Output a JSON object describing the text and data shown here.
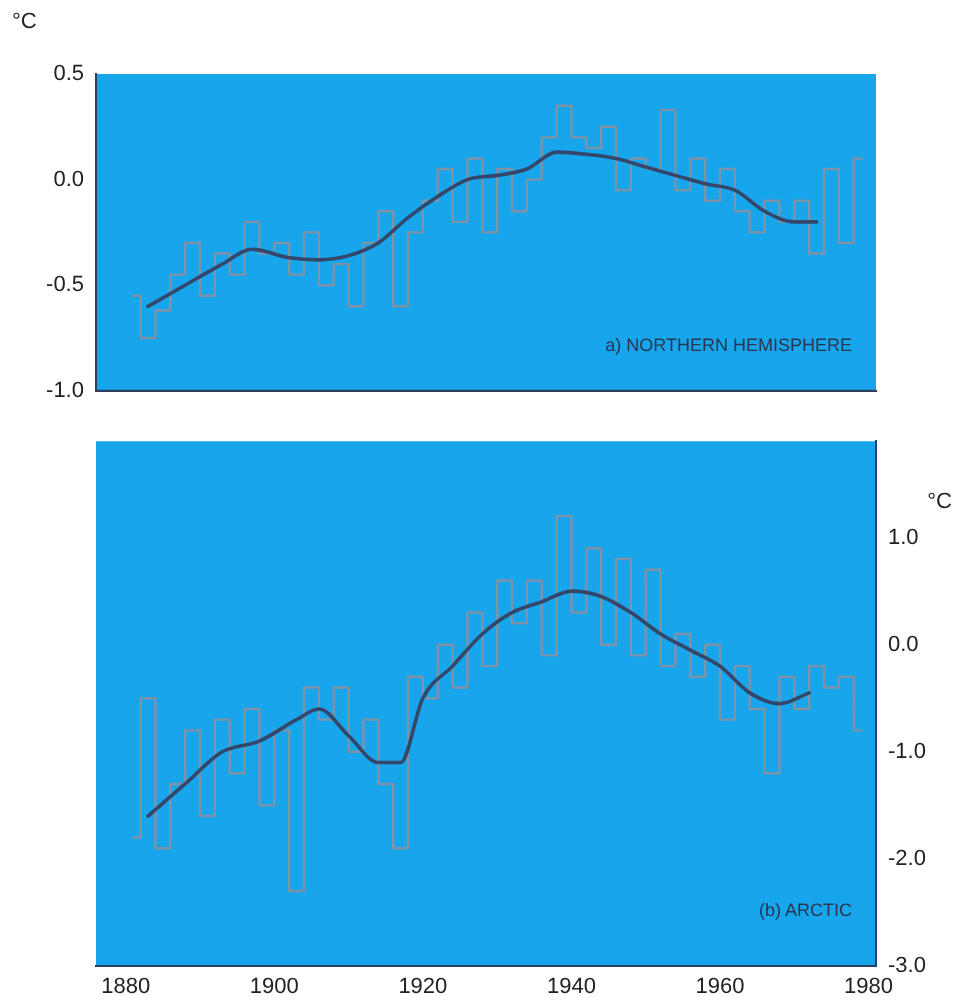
{
  "chart_data": [
    {
      "type": "step",
      "ylabel": "°C",
      "annotations": [
        "a) NORTHERN HEMISPHERE"
      ],
      "xlim": [
        1876,
        1981
      ],
      "xticks": [
        1880,
        1900,
        1920,
        1940,
        1960,
        1980
      ],
      "ylim": [
        -1.0,
        0.5
      ],
      "yticks": [
        {
          "value": -1.0,
          "label": "-1.0"
        },
        {
          "value": -0.5,
          "label": "-0.5"
        },
        {
          "value": 0.0,
          "label": "0.0"
        },
        {
          "value": 0.5,
          "label": "0.5"
        }
      ],
      "tick_labels": "y",
      "legend": false,
      "series": [
        {
          "type": "step",
          "color": "#7f93a8",
          "x": [
            1881,
            1883,
            1885,
            1887,
            1889,
            1891,
            1893,
            1895,
            1897,
            1899,
            1901,
            1903,
            1905,
            1907,
            1909,
            1911,
            1913,
            1915,
            1917,
            1919,
            1921,
            1923,
            1925,
            1927,
            1929,
            1931,
            1933,
            1935,
            1937,
            1939,
            1941,
            1943,
            1945,
            1947,
            1949,
            1951,
            1953,
            1955,
            1957,
            1959,
            1961,
            1963,
            1965,
            1967,
            1969,
            1971,
            1973,
            1975,
            1977,
            1979
          ],
          "values": [
            -0.55,
            -0.75,
            -0.62,
            -0.45,
            -0.3,
            -0.55,
            -0.35,
            -0.45,
            -0.2,
            -0.35,
            -0.3,
            -0.45,
            -0.25,
            -0.5,
            -0.4,
            -0.6,
            -0.3,
            -0.15,
            -0.6,
            -0.25,
            -0.1,
            0.05,
            -0.2,
            0.1,
            -0.25,
            0.05,
            -0.15,
            0.0,
            0.2,
            0.35,
            0.2,
            0.15,
            0.25,
            -0.05,
            0.1,
            0.05,
            0.33,
            -0.05,
            0.1,
            -0.1,
            0.05,
            -0.15,
            -0.25,
            -0.1,
            -0.2,
            -0.1,
            -0.35,
            0.05,
            -0.3,
            0.1
          ]
        },
        {
          "type": "line",
          "color": "#34466a",
          "x": [
            1883,
            1888,
            1893,
            1897,
            1902,
            1906,
            1910,
            1914,
            1918,
            1922,
            1926,
            1930,
            1934,
            1938,
            1942,
            1946,
            1950,
            1954,
            1958,
            1962,
            1966,
            1970,
            1973
          ],
          "values": [
            -0.6,
            -0.5,
            -0.4,
            -0.33,
            -0.37,
            -0.38,
            -0.36,
            -0.3,
            -0.18,
            -0.08,
            0.0,
            0.02,
            0.05,
            0.13,
            0.12,
            0.1,
            0.06,
            0.02,
            -0.02,
            -0.05,
            -0.15,
            -0.2,
            -0.2
          ]
        }
      ]
    },
    {
      "type": "step",
      "ylabel": "°C",
      "annotations": [
        "(b) ARCTIC"
      ],
      "xlim": [
        1876,
        1981
      ],
      "xticks": [
        1880,
        1900,
        1920,
        1940,
        1960,
        1980
      ],
      "ylim": [
        -3.0,
        1.9
      ],
      "yticks": [
        {
          "value": -3.0,
          "label": "-3.0"
        },
        {
          "value": -2.0,
          "label": "-2.0"
        },
        {
          "value": -1.0,
          "label": "-1.0"
        },
        {
          "value": 0.0,
          "label": "0.0"
        },
        {
          "value": 1.0,
          "label": "1.0"
        }
      ],
      "legend": false,
      "series": [
        {
          "type": "step",
          "color": "#7f93a8",
          "x": [
            1881,
            1883,
            1885,
            1887,
            1889,
            1891,
            1893,
            1895,
            1897,
            1899,
            1901,
            1903,
            1905,
            1907,
            1909,
            1911,
            1913,
            1915,
            1917,
            1919,
            1921,
            1923,
            1925,
            1927,
            1929,
            1931,
            1933,
            1935,
            1937,
            1939,
            1941,
            1943,
            1945,
            1947,
            1949,
            1951,
            1953,
            1955,
            1957,
            1959,
            1961,
            1963,
            1965,
            1967,
            1969,
            1971,
            1973,
            1975,
            1977,
            1979
          ],
          "values": [
            -1.8,
            -0.5,
            -1.9,
            -1.3,
            -0.8,
            -1.6,
            -0.7,
            -1.2,
            -0.6,
            -1.5,
            -0.8,
            -2.3,
            -0.4,
            -0.7,
            -0.4,
            -1.0,
            -0.7,
            -1.3,
            -1.9,
            -0.3,
            -0.5,
            0.0,
            -0.4,
            0.3,
            -0.2,
            0.6,
            0.2,
            0.6,
            -0.1,
            1.2,
            0.3,
            0.9,
            0.0,
            0.8,
            -0.1,
            0.7,
            -0.2,
            0.1,
            -0.3,
            0.0,
            -0.7,
            -0.2,
            -0.6,
            -1.2,
            -0.3,
            -0.6,
            -0.2,
            -0.4,
            -0.3,
            -0.8
          ]
        },
        {
          "type": "line",
          "color": "#34466a",
          "x": [
            1883,
            1888,
            1893,
            1898,
            1903,
            1906,
            1910,
            1914,
            1917,
            1920,
            1924,
            1928,
            1932,
            1936,
            1940,
            1944,
            1948,
            1952,
            1956,
            1960,
            1964,
            1968,
            1972
          ],
          "values": [
            -1.6,
            -1.3,
            -1.0,
            -0.9,
            -0.7,
            -0.6,
            -0.85,
            -1.1,
            -1.1,
            -0.5,
            -0.2,
            0.1,
            0.3,
            0.4,
            0.5,
            0.45,
            0.3,
            0.1,
            -0.05,
            -0.2,
            -0.45,
            -0.55,
            -0.45
          ]
        }
      ]
    }
  ]
}
